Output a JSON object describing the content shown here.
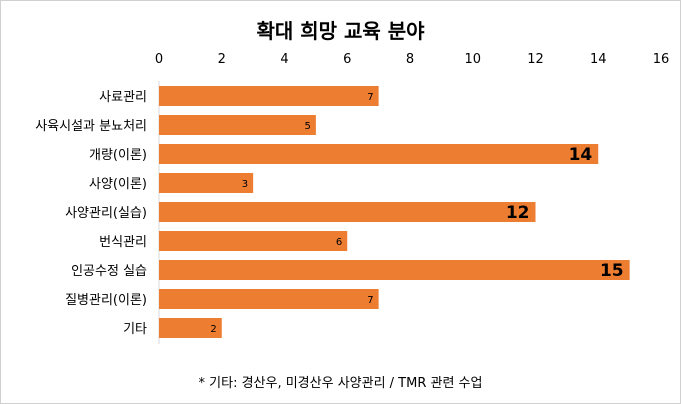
{
  "chart_data": {
    "type": "bar",
    "orientation": "horizontal",
    "title": "확대 희망 교육 분야",
    "categories": [
      "사료관리",
      "사육시설과 분뇨처리",
      "개량(이론)",
      "사양(이론)",
      "사양관리(실습)",
      "번식관리",
      "인공수정 실습",
      "질병관리(이론)",
      "기타"
    ],
    "values": [
      7,
      5,
      14,
      3,
      12,
      6,
      15,
      7,
      2
    ],
    "xlim": [
      0,
      16
    ],
    "xticks": [
      0,
      2,
      4,
      6,
      8,
      10,
      12,
      14,
      16
    ],
    "xtick_labels": [
      "0",
      "2",
      "4",
      "6",
      "8",
      "10",
      "12",
      "14",
      "16"
    ],
    "data_labels": [
      "7",
      "5",
      "14",
      "3",
      "12",
      "6",
      "15",
      "7",
      "2"
    ],
    "axis_position": "top",
    "grid": false,
    "bar_color": "#ed7d31",
    "footnote": "* 기타: 경산우, 미경산우 사양관리 / TMR 관련 수업"
  }
}
